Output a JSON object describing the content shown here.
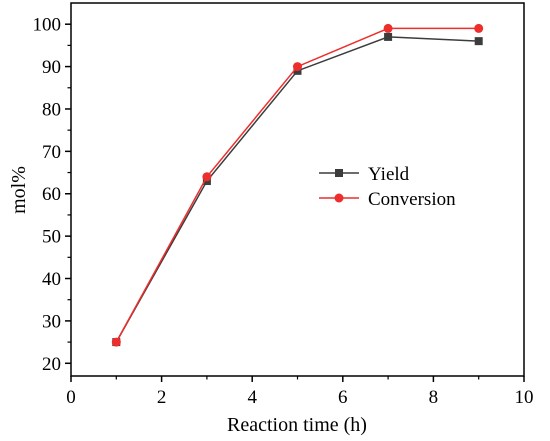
{
  "chart_data": {
    "type": "line",
    "title": "",
    "xlabel": "Reaction time (h)",
    "ylabel": "mol%",
    "xlim": [
      0,
      10
    ],
    "ylim": [
      17,
      105
    ],
    "xticks": [
      0,
      2,
      4,
      6,
      8,
      10
    ],
    "yticks": [
      20,
      30,
      40,
      50,
      60,
      70,
      80,
      90,
      100
    ],
    "grid": false,
    "legend_position": "center-right",
    "series": [
      {
        "name": "Yield",
        "color": "#3c3c3c",
        "marker": "square",
        "x": [
          1,
          3,
          5,
          7,
          9
        ],
        "y": [
          25,
          63,
          89,
          97,
          96
        ]
      },
      {
        "name": "Conversion",
        "color": "#ee2d2d",
        "marker": "circle",
        "x": [
          1,
          3,
          5,
          7,
          9
        ],
        "y": [
          25,
          64,
          90,
          99,
          99
        ]
      }
    ]
  }
}
